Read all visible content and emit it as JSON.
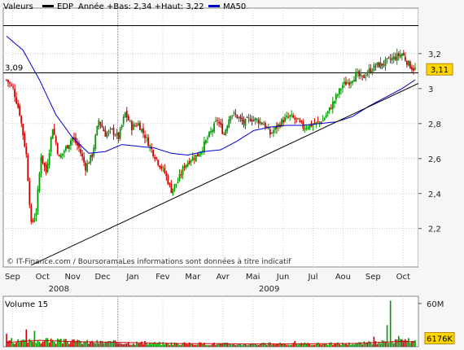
{
  "chart_data": {
    "type": "candlestick",
    "legend": {
      "valeurs_label": "Valeurs",
      "ticker": "EDP",
      "range_text": "Année +Bas: 2,34 +Haut: 3,22",
      "ma_label": "MA50",
      "ticker_color": "#000000",
      "ma_color": "#0000cc"
    },
    "x_tick_labels": [
      "Sep",
      "Oct",
      "Nov",
      "Dec",
      "Jan",
      "Fev",
      "Mar",
      "Avr",
      "Mai",
      "Jun",
      "Jul",
      "Aou",
      "Sep",
      "Oct"
    ],
    "year_labels": [
      "2008",
      "2009"
    ],
    "y_tick_labels": [
      "3,2",
      "3",
      "2,8",
      "2,6",
      "2,4",
      "2,2"
    ],
    "y_ticks": [
      3.2,
      3.0,
      2.8,
      2.6,
      2.4,
      2.2
    ],
    "ylim": [
      1.98,
      3.46
    ],
    "xlim": [
      0,
      248
    ],
    "last_price_label": "3,11",
    "last_price": 3.11,
    "left_marker_label": "3,09",
    "left_marker_value": 3.09,
    "year_max": 3.22,
    "year_min": 2.34,
    "hlines": [
      3.09,
      3.36
    ],
    "trendline": {
      "x": [
        15,
        250
      ],
      "y": [
        1.99,
        3.03
      ]
    },
    "ohlc_keypoints": {
      "x": [
        0,
        4,
        8,
        12,
        15,
        18,
        21,
        24,
        28,
        32,
        36,
        40,
        44,
        48,
        52,
        56,
        60,
        64,
        68,
        72,
        76,
        80,
        84,
        88,
        92,
        96,
        100,
        104,
        108,
        112,
        116,
        120,
        124,
        128,
        132,
        136,
        140,
        144,
        148,
        152,
        156,
        160,
        164,
        168,
        172,
        176,
        180,
        184,
        188,
        192,
        196,
        200,
        204,
        208,
        212,
        216,
        220,
        224,
        228,
        232,
        236,
        240,
        244,
        246,
        248
      ],
      "close": [
        3.05,
        3.0,
        2.86,
        2.62,
        2.22,
        2.3,
        2.62,
        2.52,
        2.78,
        2.6,
        2.66,
        2.72,
        2.66,
        2.55,
        2.62,
        2.82,
        2.74,
        2.76,
        2.72,
        2.86,
        2.78,
        2.8,
        2.73,
        2.65,
        2.58,
        2.52,
        2.42,
        2.47,
        2.56,
        2.6,
        2.62,
        2.68,
        2.75,
        2.82,
        2.74,
        2.86,
        2.84,
        2.8,
        2.83,
        2.82,
        2.8,
        2.74,
        2.78,
        2.82,
        2.84,
        2.82,
        2.78,
        2.79,
        2.8,
        2.82,
        2.88,
        2.95,
        3.02,
        3.04,
        3.08,
        3.06,
        3.1,
        3.13,
        3.14,
        3.16,
        3.18,
        3.2,
        3.14,
        3.12,
        3.11
      ]
    },
    "ma50_keypoints": {
      "x": [
        0,
        10,
        20,
        30,
        40,
        50,
        60,
        70,
        80,
        90,
        100,
        110,
        120,
        130,
        140,
        150,
        160,
        170,
        180,
        190,
        200,
        210,
        220,
        230,
        240,
        248
      ],
      "y": [
        3.3,
        3.22,
        3.05,
        2.85,
        2.72,
        2.63,
        2.64,
        2.68,
        2.67,
        2.66,
        2.63,
        2.62,
        2.64,
        2.65,
        2.7,
        2.76,
        2.78,
        2.79,
        2.79,
        2.8,
        2.81,
        2.84,
        2.9,
        2.95,
        3.0,
        3.05
      ]
    },
    "credit_text": "© IT-Finance.com / BoursoramaLes informations sont données à titre indicatif",
    "volume": {
      "label": "Volume 15",
      "tick_labels": [
        "60M"
      ],
      "ylim": [
        0,
        70
      ],
      "last_label": "6176K",
      "last_value": 6.176,
      "units": "M",
      "spikes": {
        "x": [
          0,
          1,
          3,
          5,
          10,
          12,
          15,
          17,
          24,
          40,
          100,
          175,
          223,
          228,
          231,
          233,
          238,
          244
        ],
        "y": [
          18,
          8,
          12,
          4,
          10,
          24,
          8,
          22,
          12,
          10,
          6,
          8,
          14,
          9,
          30,
          64,
          15,
          12
        ]
      },
      "ma_keypoints": {
        "x": [
          0,
          20,
          40,
          60,
          100,
          140,
          180,
          210,
          230,
          240,
          248
        ],
        "y": [
          6,
          9,
          7,
          6.5,
          4.5,
          4,
          4,
          4.5,
          6.5,
          7.5,
          6.5
        ]
      }
    }
  }
}
